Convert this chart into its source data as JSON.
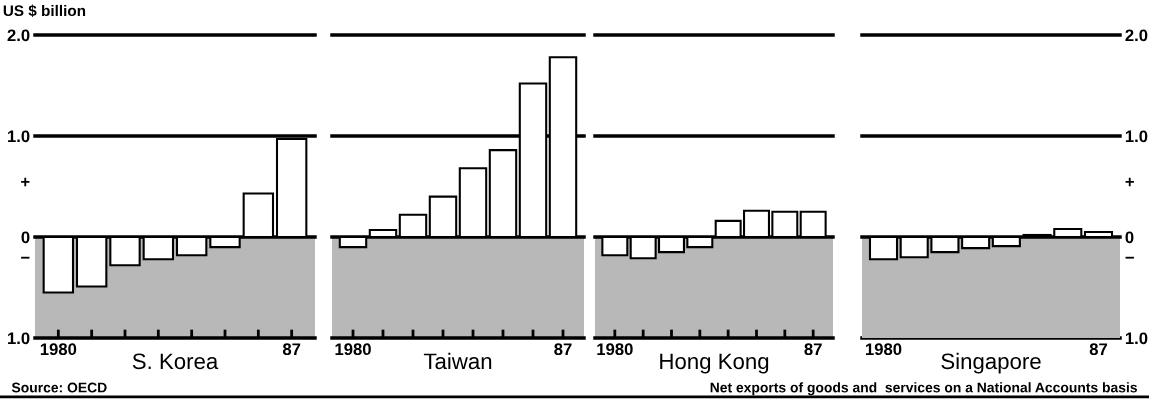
{
  "chart_data": [
    {
      "type": "bar",
      "xlabel": "S. Korea",
      "ylabel": "US $ billion",
      "categories": [
        "1980",
        null,
        null,
        null,
        null,
        null,
        null,
        "87"
      ],
      "values": [
        -0.55,
        -0.49,
        -0.28,
        -0.22,
        -0.18,
        -0.1,
        0.43,
        0.97
      ],
      "color": "#ffffff",
      "ylim": [
        -1.0,
        2.0
      ],
      "yticks": [
        {
          "value": -1.0,
          "label": "1.0"
        },
        {
          "value": -0.2,
          "label": "−"
        },
        0,
        {
          "value": 0.55,
          "label": "+"
        },
        {
          "value": 1.0,
          "label": "1.0"
        },
        {
          "value": 2.0,
          "label": "2.0"
        }
      ],
      "ref_lines": [
        {
          "axis": "y",
          "value": 0
        },
        {
          "axis": "y",
          "value": 1.0
        }
      ],
      "bands": [
        {
          "axis": "y",
          "from": -1.0,
          "to": 0,
          "color": "#b8b8b8"
        }
      ],
      "annotations": [
        "Source: OECD"
      ]
    },
    {
      "type": "bar",
      "xlabel": "Taiwan",
      "categories": [
        "1980",
        null,
        null,
        null,
        null,
        null,
        null,
        "87"
      ],
      "values": [
        -0.1,
        0.07,
        0.22,
        0.4,
        0.68,
        0.86,
        1.52,
        1.78
      ],
      "color": "#ffffff",
      "ylim": [
        -1.0,
        2.0
      ],
      "tick_labels": "x",
      "ref_lines": [
        {
          "axis": "y",
          "value": 0
        },
        {
          "axis": "y",
          "value": 1.0
        }
      ],
      "bands": [
        {
          "axis": "y",
          "from": -1.0,
          "to": 0,
          "color": "#b8b8b8"
        }
      ]
    },
    {
      "type": "bar",
      "xlabel": "Hong Kong",
      "categories": [
        "1980",
        null,
        null,
        null,
        null,
        null,
        null,
        "87"
      ],
      "values": [
        -0.18,
        -0.21,
        -0.15,
        -0.1,
        0.16,
        0.26,
        0.25,
        0.25
      ],
      "color": "#ffffff",
      "ylim": [
        -1.0,
        2.0
      ],
      "tick_labels": "x",
      "ref_lines": [
        {
          "axis": "y",
          "value": 0
        },
        {
          "axis": "y",
          "value": 1.0
        }
      ],
      "bands": [
        {
          "axis": "y",
          "from": -1.0,
          "to": 0,
          "color": "#b8b8b8"
        }
      ]
    },
    {
      "type": "bar",
      "xlabel": "Singapore",
      "categories": [
        "1980",
        null,
        null,
        null,
        null,
        null,
        null,
        "87"
      ],
      "series": [
        {
          "values": [
            -0.22,
            -0.2,
            -0.15,
            -0.11,
            -0.09,
            0.02,
            0.08,
            0.05
          ],
          "color": "#ffffff",
          "axis": "y2"
        }
      ],
      "y2lim": [
        -1.0,
        2.0
      ],
      "y2ticks": [
        {
          "value": -1.0,
          "label": "1.0"
        },
        {
          "value": -0.2,
          "label": "−"
        },
        0,
        {
          "value": 0.55,
          "label": "+"
        },
        {
          "value": 1.0,
          "label": "1.0"
        },
        {
          "value": 2.0,
          "label": "2.0"
        }
      ],
      "ref_lines": [
        {
          "axis": "y2",
          "value": 0
        },
        {
          "axis": "y2",
          "value": 1.0
        }
      ],
      "bands": [
        {
          "axis": "y2",
          "from": -1.0,
          "to": 0,
          "color": "#b8b8b8"
        }
      ],
      "annotations": [
        "Net exports of goods and  services on a National Accounts basis"
      ]
    }
  ]
}
